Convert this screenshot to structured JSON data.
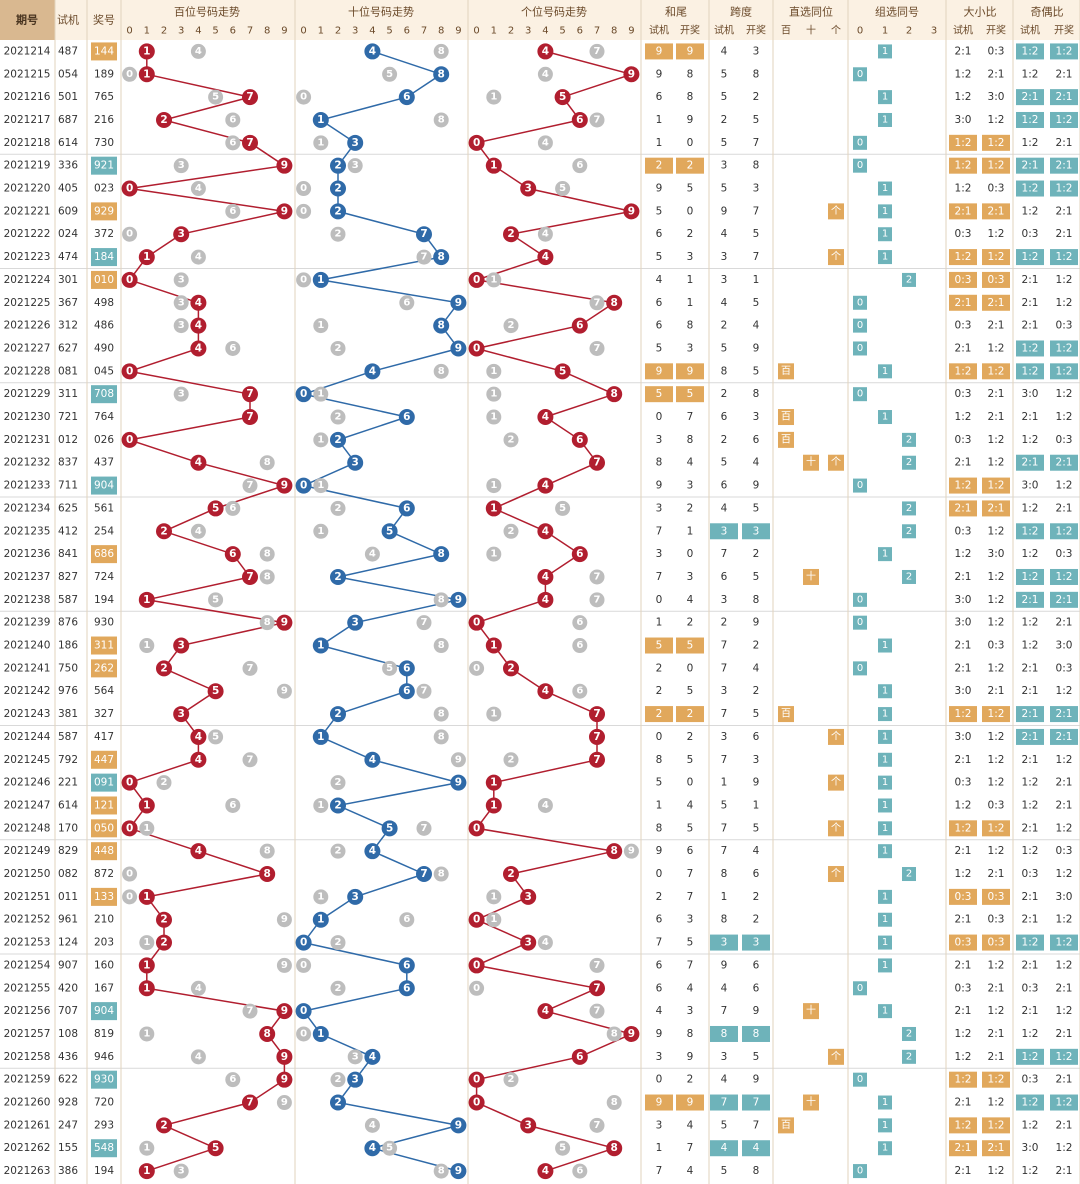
{
  "chart_data": {
    "type": "table",
    "header": {
      "period": "期号",
      "trial": "试机",
      "prize": "奖号",
      "hundreds_title": "百位号码走势",
      "tens_title": "十位号码走势",
      "units_title": "个位号码走势",
      "sum_tail": "和尾",
      "span": "跨度",
      "direct_pos": "直选同位",
      "group_same": "组选同号",
      "big_small": "大小比",
      "odd_even": "奇偶比",
      "sub_trial": "试机",
      "sub_draw": "开奖",
      "pos_bai": "百",
      "pos_shi": "十",
      "pos_ge": "个",
      "group_cols": [
        "0",
        "1",
        "2",
        "3"
      ],
      "digits": [
        "0",
        "1",
        "2",
        "3",
        "4",
        "5",
        "6",
        "7",
        "8",
        "9"
      ]
    },
    "colors": {
      "red": "#b11e2f",
      "blue": "#2f6aa8",
      "orange": "#e1a85c",
      "teal": "#6eb3ba",
      "grey": "#bdbdbd",
      "header_bg": "#fbf1e3",
      "header_text": "#6b4a2a"
    },
    "rows": [
      {
        "p": "2021214",
        "t": "487",
        "d": "144",
        "tm": "o"
      },
      {
        "p": "2021215",
        "t": "054",
        "d": "189"
      },
      {
        "p": "2021216",
        "t": "501",
        "d": "765"
      },
      {
        "p": "2021217",
        "t": "687",
        "d": "216"
      },
      {
        "p": "2021218",
        "t": "614",
        "d": "730"
      },
      {
        "p": "2021219",
        "t": "336",
        "d": "921",
        "tm": "t"
      },
      {
        "p": "2021220",
        "t": "405",
        "d": "023"
      },
      {
        "p": "2021221",
        "t": "609",
        "d": "929",
        "tm": "o"
      },
      {
        "p": "2021222",
        "t": "024",
        "d": "372"
      },
      {
        "p": "2021223",
        "t": "474",
        "d": "184",
        "tm": "t"
      },
      {
        "p": "2021224",
        "t": "301",
        "d": "010",
        "tm": "o"
      },
      {
        "p": "2021225",
        "t": "367",
        "d": "498"
      },
      {
        "p": "2021226",
        "t": "312",
        "d": "486"
      },
      {
        "p": "2021227",
        "t": "627",
        "d": "490"
      },
      {
        "p": "2021228",
        "t": "081",
        "d": "045"
      },
      {
        "p": "2021229",
        "t": "311",
        "d": "708",
        "tm": "t"
      },
      {
        "p": "2021230",
        "t": "721",
        "d": "764"
      },
      {
        "p": "2021231",
        "t": "012",
        "d": "026"
      },
      {
        "p": "2021232",
        "t": "837",
        "d": "437"
      },
      {
        "p": "2021233",
        "t": "711",
        "d": "904",
        "tm": "t"
      },
      {
        "p": "2021234",
        "t": "625",
        "d": "561"
      },
      {
        "p": "2021235",
        "t": "412",
        "d": "254"
      },
      {
        "p": "2021236",
        "t": "841",
        "d": "686",
        "tm": "o"
      },
      {
        "p": "2021237",
        "t": "827",
        "d": "724"
      },
      {
        "p": "2021238",
        "t": "587",
        "d": "194"
      },
      {
        "p": "2021239",
        "t": "876",
        "d": "930"
      },
      {
        "p": "2021240",
        "t": "186",
        "d": "311",
        "tm": "o"
      },
      {
        "p": "2021241",
        "t": "750",
        "d": "262",
        "tm": "o"
      },
      {
        "p": "2021242",
        "t": "976",
        "d": "564"
      },
      {
        "p": "2021243",
        "t": "381",
        "d": "327"
      },
      {
        "p": "2021244",
        "t": "587",
        "d": "417"
      },
      {
        "p": "2021245",
        "t": "792",
        "d": "447",
        "tm": "o"
      },
      {
        "p": "2021246",
        "t": "221",
        "d": "091",
        "tm": "t"
      },
      {
        "p": "2021247",
        "t": "614",
        "d": "121",
        "tm": "o"
      },
      {
        "p": "2021248",
        "t": "170",
        "d": "050",
        "tm": "o"
      },
      {
        "p": "2021249",
        "t": "829",
        "d": "448",
        "tm": "o"
      },
      {
        "p": "2021250",
        "t": "082",
        "d": "872"
      },
      {
        "p": "2021251",
        "t": "011",
        "d": "133",
        "tm": "o"
      },
      {
        "p": "2021252",
        "t": "961",
        "d": "210"
      },
      {
        "p": "2021253",
        "t": "124",
        "d": "203"
      },
      {
        "p": "2021254",
        "t": "907",
        "d": "160"
      },
      {
        "p": "2021255",
        "t": "420",
        "d": "167"
      },
      {
        "p": "2021256",
        "t": "707",
        "d": "904",
        "tm": "t"
      },
      {
        "p": "2021257",
        "t": "108",
        "d": "819"
      },
      {
        "p": "2021258",
        "t": "436",
        "d": "946"
      },
      {
        "p": "2021259",
        "t": "622",
        "d": "930",
        "tm": "t"
      },
      {
        "p": "2021260",
        "t": "928",
        "d": "720"
      },
      {
        "p": "2021261",
        "t": "247",
        "d": "293"
      },
      {
        "p": "2021262",
        "t": "155",
        "d": "548",
        "tm": "t"
      },
      {
        "p": "2021263",
        "t": "386",
        "d": "194"
      }
    ]
  }
}
